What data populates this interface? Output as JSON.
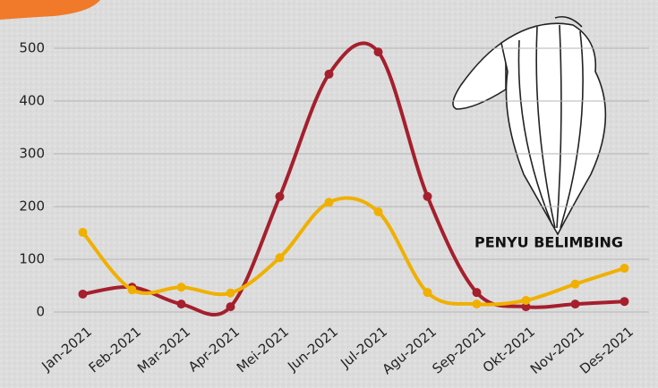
{
  "chart_data": {
    "type": "line",
    "annotation": "PENYU BELIMBING",
    "categories": [
      "Jan-2021",
      "Feb-2021",
      "Mar-2021",
      "Apr-2021",
      "Mei-2021",
      "Jun-2021",
      "Jul-2021",
      "Agu-2021",
      "Sep-2021",
      "Okt-2021",
      "Nov-2021",
      "Des-2021"
    ],
    "series": [
      {
        "color": "#a51f2d",
        "values": [
          34,
          47,
          15,
          10,
          219,
          451,
          493,
          219,
          37,
          10,
          15,
          20
        ]
      },
      {
        "color": "#f0b000",
        "values": [
          151,
          42,
          47,
          36,
          103,
          208,
          190,
          37,
          15,
          22,
          53,
          83
        ]
      }
    ],
    "ylim": [
      0,
      500
    ],
    "yticks": [
      0,
      100,
      200,
      300,
      400,
      500
    ],
    "grid": true,
    "smooth": true
  }
}
